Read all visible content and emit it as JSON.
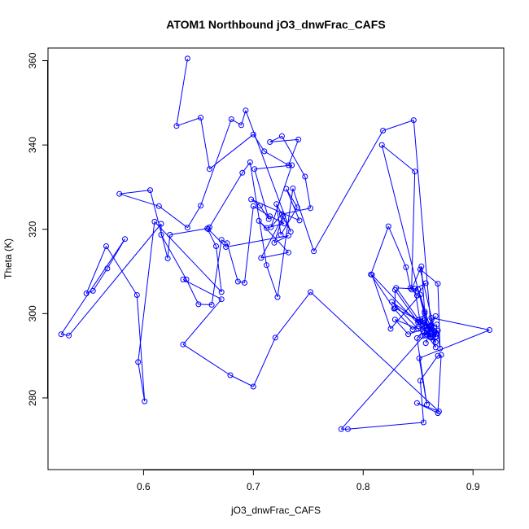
{
  "chart_data": {
    "type": "line",
    "title": "ATOM1 Northbound jO3_dnwFrac_CAFS",
    "xlabel": "jO3_dnwFrac_CAFS",
    "ylabel": "Theta (K)",
    "xlim": [
      0.513,
      0.928
    ],
    "ylim": [
      263,
      363
    ],
    "xticks": [
      0.6,
      0.7,
      0.8,
      0.9
    ],
    "xtick_labels": [
      "0.6",
      "0.7",
      "0.8",
      "0.9"
    ],
    "yticks": [
      280,
      300,
      320,
      340,
      360
    ],
    "ytick_labels": [
      "280",
      "300",
      "320",
      "340",
      "360"
    ],
    "grid": false,
    "legend": "none",
    "series_color": "#0000ff",
    "markers": "open-circle",
    "series": [
      {
        "x": [
          0.64,
          0.63,
          0.652,
          0.66,
          0.7,
          0.71,
          0.732,
          0.741,
          0.715,
          0.726,
          0.747,
          0.752,
          0.726,
          0.716,
          0.735,
          0.701,
          0.714,
          0.706,
          0.698,
          0.742,
          0.73,
          0.74,
          0.725,
          0.721,
          0.734,
          0.693,
          0.689,
          0.68,
          0.652,
          0.64,
          0.614,
          0.578,
          0.606,
          0.622,
          0.624,
          0.658,
          0.666,
          0.671,
          0.61,
          0.595,
          0.601,
          0.594,
          0.566,
          0.548,
          0.554,
          0.567,
          0.583,
          0.525,
          0.532,
          0.616,
          0.616,
          0.639,
          0.65,
          0.662,
          0.671,
          0.676,
          0.686,
          0.692,
          0.7,
          0.715,
          0.728,
          0.712,
          0.705,
          0.732,
          0.707,
          0.727,
          0.719,
          0.732,
          0.675,
          0.659,
          0.66,
          0.69,
          0.697,
          0.712,
          0.722,
          0.736,
          0.755,
          0.818,
          0.846,
          0.862,
          0.85,
          0.83,
          0.862,
          0.865,
          0.852,
          0.868,
          0.87,
          0.868,
          0.867,
          0.858,
          0.854,
          0.847,
          0.857,
          0.849,
          0.843,
          0.839,
          0.823,
          0.807,
          0.828,
          0.845,
          0.852,
          0.856,
          0.852,
          0.825,
          0.808,
          0.862,
          0.858,
          0.866,
          0.862,
          0.857,
          0.862,
          0.829,
          0.829,
          0.85,
          0.862,
          0.856,
          0.866,
          0.864,
          0.826,
          0.856,
          0.862,
          0.866,
          0.867,
          0.841,
          0.829,
          0.85,
          0.857,
          0.85,
          0.854,
          0.859,
          0.817,
          0.847,
          0.844,
          0.853,
          0.856,
          0.861,
          0.866,
          0.862,
          0.915,
          0.851,
          0.858,
          0.849,
          0.866,
          0.862,
          0.858,
          0.78,
          0.786,
          0.855,
          0.852,
          0.868,
          0.871,
          0.868,
          0.849,
          0.869,
          0.752,
          0.72,
          0.7,
          0.679,
          0.636,
          0.671,
          0.636
        ],
        "y": [
          360.5,
          344.5,
          346.5,
          334.3,
          342.5,
          338.5,
          335.2,
          341.3,
          340.7,
          342.1,
          332.5,
          325.0,
          323.6,
          320.5,
          335.2,
          334.3,
          322.4,
          325.6,
          327.1,
          322.1,
          329.6,
          325.2,
          318.7,
          326.0,
          319.4,
          348.2,
          344.7,
          346.1,
          325.6,
          320.4,
          325.5,
          328.4,
          329.3,
          313.1,
          318.7,
          320.2,
          316.0,
          305.1,
          321.8,
          288.5,
          279.2,
          304.4,
          316.0,
          304.8,
          305.4,
          310.7,
          317.7,
          295.1,
          294.8,
          321.3,
          318.7,
          308.1,
          302.2,
          302.1,
          317.5,
          316.7,
          307.6,
          307.3,
          325.5,
          323.1,
          321.4,
          320.3,
          322.0,
          314.5,
          313.2,
          323.0,
          316.8,
          318.5,
          315.8,
          320.0,
          320.5,
          333.4,
          335.9,
          311.5,
          303.9,
          329.7,
          314.8,
          343.4,
          345.9,
          295.9,
          305.8,
          306.1,
          294.3,
          295.9,
          310.5,
          307.1,
          291.7,
          296.0,
          295.2,
          297.0,
          294.7,
          305.9,
          307.2,
          304.3,
          306.1,
          311.0,
          320.7,
          309.3,
          301.2,
          296.2,
          298.1,
          300.1,
          304.5,
          296.4,
          309.2,
          294.3,
          295.0,
          292.0,
          297.3,
          293.0,
          296.9,
          301.3,
          305.6,
          297.9,
          294.5,
          298.4,
          294.5,
          295.7,
          302.8,
          294.8,
          296.2,
          294.4,
          297.4,
          295.1,
          298.6,
          296.4,
          297.2,
          298.5,
          298.8,
          296.3,
          340.0,
          333.7,
          305.7,
          311.2,
          300.5,
          294.4,
          293.2,
          299.0,
          296.1,
          289.4,
          278.4,
          294.2,
          299.4,
          297.1,
          295.5,
          272.6,
          272.6,
          274.2,
          284.1,
          290.0,
          290.2,
          276.4,
          278.8,
          276.8,
          305.1,
          294.3,
          282.7,
          285.4,
          292.7,
          303.4,
          308.1
        ]
      }
    ]
  }
}
